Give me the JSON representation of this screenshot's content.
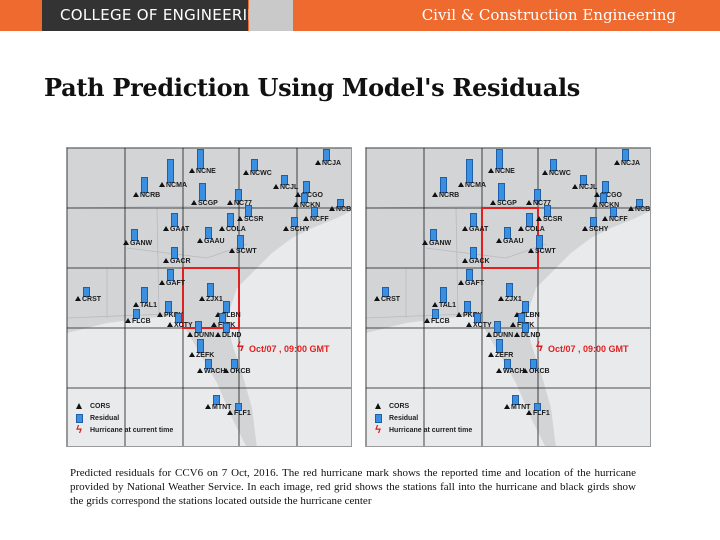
{
  "header": {
    "left_text": "COLLEGE OF ENGINEERING",
    "right_text": "Civil & Construction Engineering",
    "colors": {
      "bar": "#ef6a2f",
      "left_block": "#333333",
      "gray_block": "#c9c9c9"
    }
  },
  "title": "Path Prediction Using Model's Residuals",
  "maps": [
    {
      "id": "left",
      "stations": [
        "NCJA",
        "NCNE",
        "NCWC",
        "NCMA",
        "NCJL",
        "NCRB",
        "NCGO",
        "SCGP",
        "NC77",
        "NCKN",
        "NCBE",
        "GAAT",
        "SCSR",
        "COLA",
        "NCFF",
        "SCHY",
        "GANW",
        "GAAU",
        "SCWT",
        "GACR",
        "GAFT",
        "CRST",
        "TAL1",
        "ZJX1",
        "PKRY",
        "FLCB",
        "FLBN",
        "XCTY",
        "FLTK",
        "DUNN",
        "DLND",
        "ZEFK",
        "WACH",
        "OKCB",
        "MTNT",
        "FLF1"
      ],
      "hurricane_label": "Oct/07 ,  09:00 GMT"
    },
    {
      "id": "right",
      "stations": [
        "NCJA",
        "NCNE",
        "NCWC",
        "NCMA",
        "NCJL",
        "NCRB",
        "NCGO",
        "SCGP",
        "NC77",
        "NCKN",
        "NCBE",
        "GAAT",
        "SCSR",
        "COLA",
        "NCFF",
        "SCHY",
        "GANW",
        "GAAU",
        "SCWT",
        "GACK",
        "GAFT",
        "CRST",
        "TAL1",
        "ZJX1",
        "PKRY",
        "FLCB",
        "FLBN",
        "XCTY",
        "FLTK",
        "DUNN",
        "DLND",
        "ZEFR",
        "WACH",
        "OKCB",
        "MTNT",
        "FLF1"
      ],
      "hurricane_label": "Oct/07 ,  09:00 GMT"
    }
  ],
  "legend": {
    "cors": "CORS",
    "residual": "Residual",
    "hurricane": "Hurricane at current time"
  },
  "icons": {
    "cors": "triangle-icon",
    "residual": "residual-bar-icon",
    "hurricane": "hurricane-bolt-icon"
  },
  "colors": {
    "red_grid": "#e02020",
    "black_grid": "#1a1a1a",
    "residual": "#3b8fe0",
    "land": "#d2d4d6",
    "sea": "#e9eaec"
  },
  "caption": "Predicted residuals for CCV6 on 7 Oct, 2016. The red hurricane mark shows the reported time and location of the hurricane provided by National Weather Service. In each image, red grid shows the stations fall into the hurricane and black girds show the grids correspond the stations located outside the hurricane center"
}
